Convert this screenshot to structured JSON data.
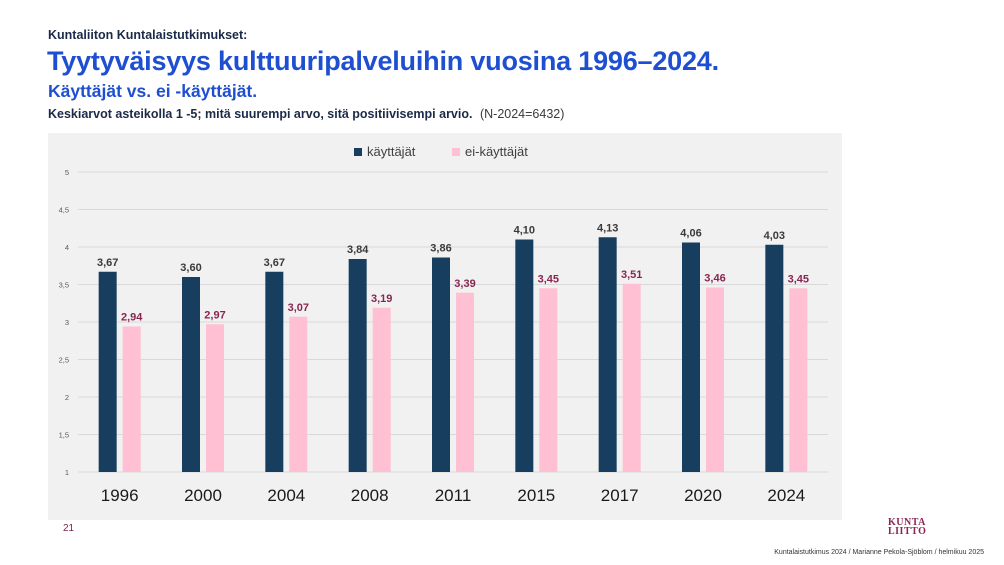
{
  "header": {
    "kicker": "Kuntaliiton Kuntalaistutkimukset:",
    "title": "Tyytyväisyys kulttuuripalveluihin vuosina 1996–2024.",
    "subtitle": "Käyttäjät vs. ei -käyttäjät.",
    "description": "Keskiarvot asteikolla 1 -5; mitä suurempi arvo, sitä positiivisempi arvio.",
    "sample_note": "(N-2024=6432)"
  },
  "chart_data": {
    "type": "bar",
    "categories": [
      "1996",
      "2000",
      "2004",
      "2008",
      "2011",
      "2015",
      "2017",
      "2020",
      "2024"
    ],
    "series": [
      {
        "name": "käyttäjät",
        "color": "#173e5f",
        "label_color": "#3a3a3a",
        "values": [
          3.67,
          3.6,
          3.67,
          3.84,
          3.86,
          4.1,
          4.13,
          4.06,
          4.03
        ],
        "labels": [
          "3,67",
          "3,60",
          "3,67",
          "3,84",
          "3,86",
          "4,10",
          "4,13",
          "4,06",
          "4,03"
        ]
      },
      {
        "name": "ei-käyttäjät",
        "color": "#ffc0d3",
        "label_color": "#8a2552",
        "values": [
          2.94,
          2.97,
          3.07,
          3.19,
          3.39,
          3.45,
          3.51,
          3.46,
          3.45
        ],
        "labels": [
          "2,94",
          "2,97",
          "3,07",
          "3,19",
          "3,39",
          "3,45",
          "3,51",
          "3,46",
          "3,45"
        ]
      }
    ],
    "y_ticks": [
      "1",
      "1,5",
      "2",
      "2,5",
      "3",
      "3,5",
      "4",
      "4,5",
      "5"
    ],
    "ylim": [
      1,
      5
    ],
    "grid": true,
    "legend_position": "top-center"
  },
  "footer": {
    "page_number": "21",
    "logo_line1": "KUNTA",
    "logo_line2": "LIITTO",
    "credit": "Kuntalaistutkimus 2024 / Marianne Pekola-Sjöblom / helmikuu 2025"
  }
}
